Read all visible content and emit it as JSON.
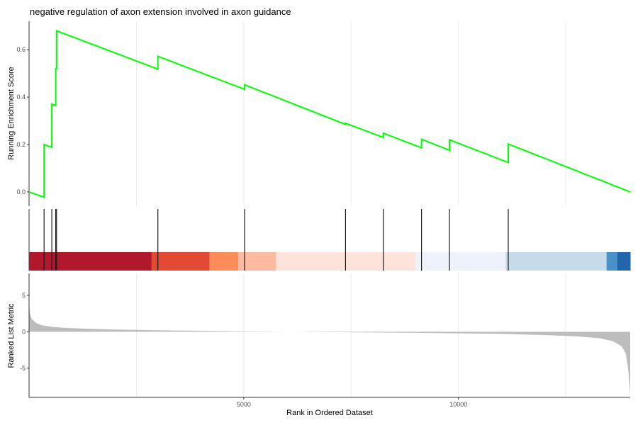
{
  "chart_data": [
    {
      "type": "line",
      "panel": "running-enrichment-score",
      "title": "negative regulation of axon extension involved in axon guidance",
      "xlabel": "",
      "ylabel": "Running Enrichment Score",
      "xlim": [
        0,
        14000
      ],
      "ylim": [
        -0.06,
        0.72
      ],
      "yticks": [
        0.0,
        0.2,
        0.4,
        0.6
      ],
      "ytick_labels": [
        "0.0",
        "0.2",
        "0.4",
        "0.6"
      ],
      "line_color": "#00ff00",
      "grid": true,
      "x": [
        0,
        350,
        350,
        530,
        530,
        620,
        620,
        640,
        640,
        3000,
        3000,
        5020,
        5020,
        7370,
        7370,
        8250,
        8250,
        9140,
        9140,
        9790,
        9790,
        11160,
        11160,
        14000
      ],
      "y": [
        0.0,
        -0.022,
        0.2,
        0.188,
        0.37,
        0.364,
        0.52,
        0.52,
        0.68,
        0.518,
        0.572,
        0.433,
        0.452,
        0.285,
        0.29,
        0.23,
        0.248,
        0.186,
        0.222,
        0.176,
        0.22,
        0.124,
        0.202,
        0.0
      ]
    },
    {
      "type": "table",
      "panel": "gene-set-hits",
      "hit_positions": [
        350,
        530,
        620,
        640,
        3000,
        5020,
        7370,
        8250,
        9140,
        9790,
        11160
      ],
      "color_bands": [
        {
          "from": 0,
          "to": 2850,
          "color": "#b2182b"
        },
        {
          "from": 2850,
          "to": 4200,
          "color": "#e34a33"
        },
        {
          "from": 4200,
          "to": 4870,
          "color": "#fc8d59"
        },
        {
          "from": 4870,
          "to": 5750,
          "color": "#fcbba1"
        },
        {
          "from": 5750,
          "to": 9000,
          "color": "#fde3da"
        },
        {
          "from": 9000,
          "to": 11100,
          "color": "#eef3fb"
        },
        {
          "from": 11100,
          "to": 13450,
          "color": "#c6dbea"
        },
        {
          "from": 13450,
          "to": 13700,
          "color": "#4a90c9"
        },
        {
          "from": 13700,
          "to": 14000,
          "color": "#2166ac"
        }
      ]
    },
    {
      "type": "area",
      "panel": "ranked-list-metric",
      "xlabel": "Rank in Ordered Dataset",
      "ylabel": "Ranked List Metric",
      "xlim": [
        0,
        14000
      ],
      "ylim": [
        -9,
        8
      ],
      "xticks": [
        5000,
        10000
      ],
      "xtick_labels": [
        "5000",
        "10000"
      ],
      "yticks": [
        -5,
        0,
        5
      ],
      "ytick_labels": [
        "-5",
        "0",
        "5"
      ],
      "fill_color": "#bdbdbd",
      "grid": true,
      "x": [
        0,
        20,
        60,
        120,
        200,
        300,
        500,
        800,
        1200,
        2000,
        3000,
        5000,
        7000,
        9000,
        11000,
        12000,
        12800,
        13300,
        13600,
        13800,
        13900,
        13960,
        14000
      ],
      "y": [
        4.0,
        2.5,
        1.8,
        1.4,
        1.1,
        0.9,
        0.7,
        0.55,
        0.45,
        0.3,
        0.2,
        0.05,
        -0.05,
        -0.15,
        -0.3,
        -0.45,
        -0.65,
        -0.9,
        -1.3,
        -2.0,
        -3.0,
        -5.5,
        -8.8
      ]
    }
  ]
}
